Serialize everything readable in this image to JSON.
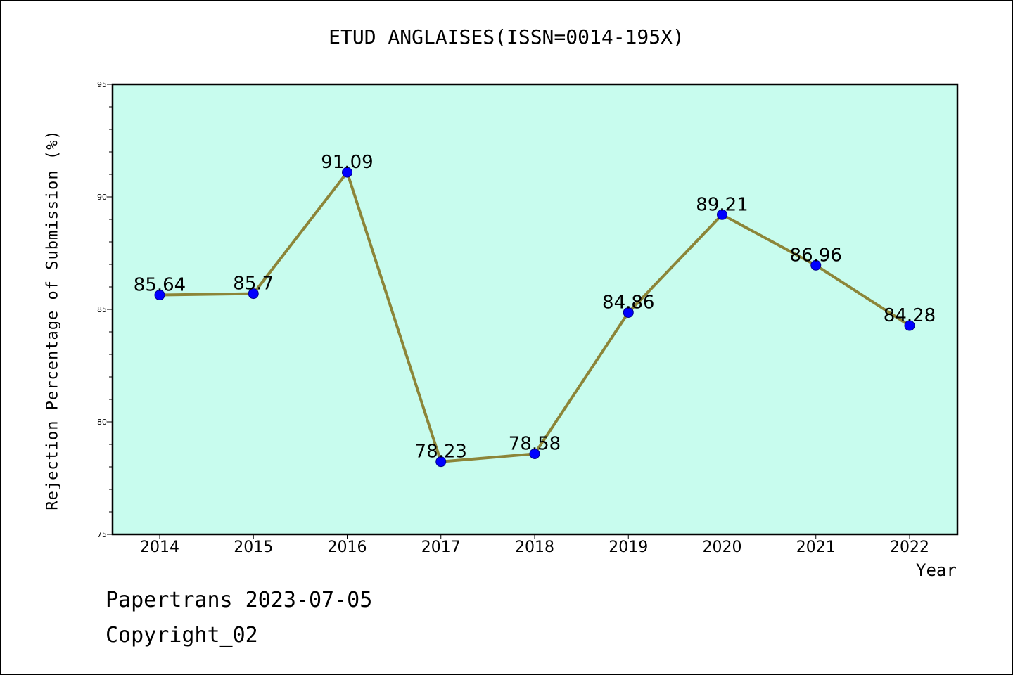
{
  "chart_data": {
    "type": "line",
    "title": "ETUD ANGLAISES(ISSN=0014-195X)",
    "xlabel": "Year",
    "ylabel": "Rejection Percentage of Submission (%)",
    "categories": [
      "2014",
      "2015",
      "2016",
      "2017",
      "2018",
      "2019",
      "2020",
      "2021",
      "2022"
    ],
    "values": [
      85.64,
      85.7,
      91.09,
      78.23,
      78.58,
      84.86,
      89.21,
      86.96,
      84.28
    ],
    "data_labels": [
      "85.64",
      "85.7",
      "91.09",
      "78.23",
      "78.58",
      "84.86",
      "89.21",
      "86.96",
      "84.28"
    ],
    "ylim": [
      75,
      95
    ],
    "yticks": [
      75,
      80,
      85,
      90,
      95
    ],
    "grid": false,
    "colors": {
      "plot_background": "#c8fcee",
      "line": "#8c8538",
      "marker": "#0000ff"
    }
  },
  "footer": {
    "line1": "Papertrans 2023-07-05",
    "line2": "Copyright_02"
  }
}
